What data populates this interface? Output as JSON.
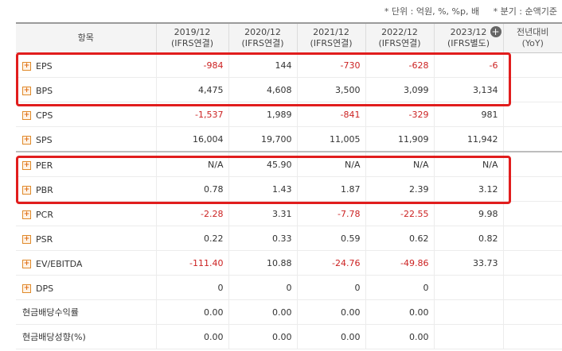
{
  "notes": {
    "unit": "* 단위 : 억원, %, %p, 배",
    "quarter": "* 분기 : 순액기준"
  },
  "header": {
    "item_label": "항목",
    "columns": [
      {
        "year": "2019/12",
        "basis": "(IFRS연결)"
      },
      {
        "year": "2020/12",
        "basis": "(IFRS연결)"
      },
      {
        "year": "2021/12",
        "basis": "(IFRS연결)"
      },
      {
        "year": "2022/12",
        "basis": "(IFRS연결)"
      },
      {
        "year": "2023/12",
        "basis": "(IFRS별도)"
      }
    ],
    "yoy_line1": "전년대비",
    "yoy_line2": "(YoY)",
    "plus_icon": "+"
  },
  "rows": [
    {
      "label": "EPS",
      "expand": "+",
      "values": [
        "-984",
        "144",
        "-730",
        "-628",
        "-6"
      ]
    },
    {
      "label": "BPS",
      "expand": "+",
      "values": [
        "4,475",
        "4,608",
        "3,500",
        "3,099",
        "3,134"
      ]
    },
    {
      "label": "CPS",
      "expand": "+",
      "values": [
        "-1,537",
        "1,989",
        "-841",
        "-329",
        "981"
      ]
    },
    {
      "label": "SPS",
      "expand": "+",
      "values": [
        "16,004",
        "19,700",
        "11,005",
        "11,909",
        "11,942"
      ]
    },
    {
      "label": "PER",
      "expand": "+",
      "values": [
        "N/A",
        "45.90",
        "N/A",
        "N/A",
        "N/A"
      ]
    },
    {
      "label": "PBR",
      "expand": "+",
      "values": [
        "0.78",
        "1.43",
        "1.87",
        "2.39",
        "3.12"
      ]
    },
    {
      "label": "PCR",
      "expand": "+",
      "values": [
        "-2.28",
        "3.31",
        "-7.78",
        "-22.55",
        "9.98"
      ]
    },
    {
      "label": "PSR",
      "expand": "+",
      "values": [
        "0.22",
        "0.33",
        "0.59",
        "0.62",
        "0.82"
      ]
    },
    {
      "label": "EV/EBITDA",
      "expand": "+",
      "values": [
        "-111.40",
        "10.88",
        "-24.76",
        "-49.86",
        "33.73"
      ]
    },
    {
      "label": "DPS",
      "expand": "+",
      "values": [
        "0",
        "0",
        "0",
        "0",
        ""
      ]
    },
    {
      "label": "현금배당수익률",
      "expand": "",
      "values": [
        "0.00",
        "0.00",
        "0.00",
        "0.00",
        ""
      ]
    },
    {
      "label": "현금배당성향(%)",
      "expand": "",
      "values": [
        "0.00",
        "0.00",
        "0.00",
        "0.00",
        ""
      ]
    }
  ],
  "colors": {
    "negative": "#cc2222",
    "highlight": "#e11d1d"
  }
}
